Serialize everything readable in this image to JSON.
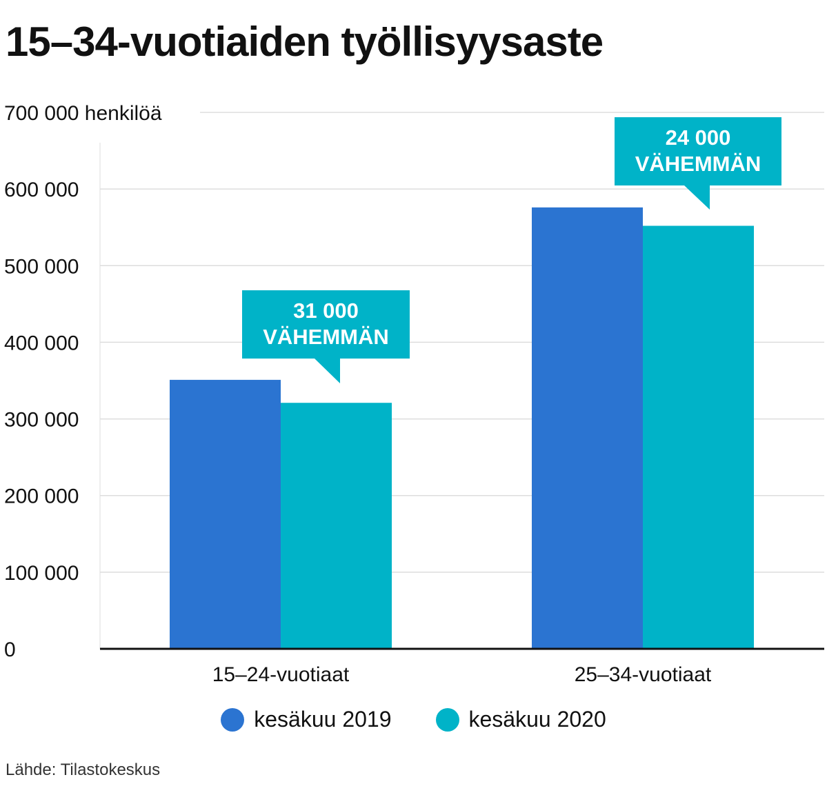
{
  "title": "15–34-vuotiaiden työllisyysaste",
  "source": "Lähde: Tilastokeskus",
  "colors": {
    "series_2019": "#2b74d1",
    "series_2020": "#00b3c8",
    "grid": "#dddddd",
    "axis": "#111111"
  },
  "chart_data": {
    "type": "bar",
    "title": "15–34-vuotiaiden työllisyysaste",
    "categories": [
      "15–24-vuotiaat",
      "25–34-vuotiaat"
    ],
    "series": [
      {
        "name": "kesäkuu 2019",
        "values": [
          351000,
          576000
        ]
      },
      {
        "name": "kesäkuu 2020",
        "values": [
          321000,
          552000
        ]
      }
    ],
    "ylim": [
      0,
      700000
    ],
    "yticks": [
      {
        "value": 0,
        "label": "0"
      },
      {
        "value": 100000,
        "label": "100 000"
      },
      {
        "value": 200000,
        "label": "200 000"
      },
      {
        "value": 300000,
        "label": "300 000"
      },
      {
        "value": 400000,
        "label": "400 000"
      },
      {
        "value": 500000,
        "label": "500 000"
      },
      {
        "value": 600000,
        "label": "600 000"
      },
      {
        "value": 700000,
        "label": "700 000 henkilöä"
      }
    ],
    "annotations": [
      {
        "category": "15–24-vuotiaat",
        "lines": [
          "31 000",
          "VÄHEMMÄN"
        ]
      },
      {
        "category": "25–34-vuotiaat",
        "lines": [
          "24 000",
          "VÄHEMMÄN"
        ]
      }
    ],
    "grid": true,
    "legend": "bottom-center"
  }
}
